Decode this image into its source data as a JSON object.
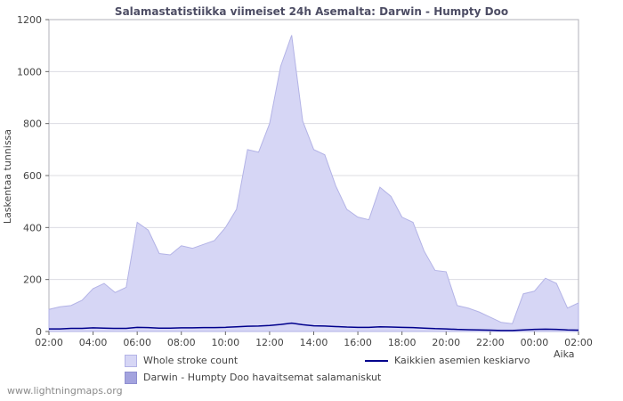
{
  "chart": {
    "title": "Salamastatistiikka viimeiset 24h Asemalta: Darwin - Humpty Doo",
    "ylabel": "Laskentaa tunnissa",
    "xlabel": "Aika"
  },
  "legend": {
    "whole": "Whole stroke count",
    "average": "Kaikkien asemien keskiarvo",
    "darwin": "Darwin - Humpty Doo havaitsemat salamaniskut"
  },
  "watermark": "www.lightningmaps.org",
  "colors": {
    "area_light": "#d6d6f5",
    "area_light_edge": "#b3b3e6",
    "area_mid": "#a3a3de",
    "average_line": "#00008c"
  },
  "chart_data": {
    "type": "area",
    "title": "Salamastatistiikka viimeiset 24h Asemalta: Darwin - Humpty Doo",
    "xlabel": "Aika",
    "ylabel": "Laskentaa tunnissa",
    "ylim": [
      0,
      1200
    ],
    "y_ticks": [
      0,
      200,
      400,
      600,
      800,
      1000,
      1200
    ],
    "x_ticks": [
      "02:00",
      "04:00",
      "06:00",
      "08:00",
      "10:00",
      "12:00",
      "14:00",
      "16:00",
      "18:00",
      "20:00",
      "22:00",
      "00:00",
      "02:00"
    ],
    "x_step_hours": 0.5,
    "grid": "horizontal",
    "legend_position": "bottom",
    "series": [
      {
        "name": "Whole stroke count",
        "style": "area",
        "color": "#d6d6f5",
        "values": [
          85,
          95,
          100,
          120,
          165,
          185,
          150,
          170,
          420,
          390,
          300,
          295,
          330,
          320,
          335,
          350,
          400,
          470,
          700,
          690,
          800,
          1020,
          1140,
          810,
          700,
          680,
          560,
          470,
          440,
          430,
          555,
          520,
          440,
          420,
          310,
          235,
          230,
          100,
          90,
          75,
          55,
          35,
          30,
          145,
          155,
          205,
          185,
          90,
          110
        ]
      },
      {
        "name": "Kaikkien asemien keskiarvo",
        "style": "line",
        "color": "#00008c",
        "values": [
          10,
          10,
          12,
          12,
          14,
          13,
          12,
          12,
          16,
          15,
          13,
          13,
          14,
          14,
          15,
          15,
          16,
          18,
          20,
          21,
          23,
          27,
          32,
          26,
          22,
          21,
          19,
          17,
          16,
          16,
          18,
          17,
          16,
          15,
          13,
          11,
          10,
          8,
          7,
          6,
          5,
          4,
          4,
          6,
          8,
          9,
          8,
          6,
          5
        ]
      },
      {
        "name": "Darwin - Humpty Doo havaitsemat salamaniskut",
        "style": "area",
        "color": "#a3a3de",
        "values": [
          0,
          0,
          0,
          0,
          0,
          0,
          0,
          0,
          0,
          0,
          0,
          0,
          0,
          0,
          0,
          0,
          0,
          0,
          0,
          0,
          0,
          0,
          0,
          0,
          0,
          0,
          0,
          0,
          0,
          0,
          0,
          0,
          0,
          0,
          0,
          0,
          0,
          0,
          0,
          0,
          0,
          0,
          0,
          0,
          0,
          0,
          0,
          0,
          0
        ]
      }
    ]
  }
}
